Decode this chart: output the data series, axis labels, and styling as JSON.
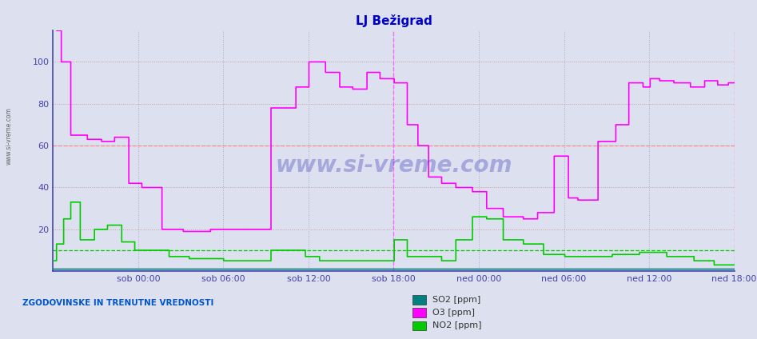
{
  "title": "LJ Bežigrad",
  "title_color": "#0000cc",
  "background_color": "#dde0ee",
  "plot_bg_color": "#dde0ee",
  "yticks": [
    20,
    40,
    60,
    80,
    100
  ],
  "ymin": 0,
  "ymax": 115,
  "xtick_labels": [
    "sob 00:00",
    "sob 06:00",
    "sob 12:00",
    "sob 18:00",
    "ned 00:00",
    "ned 06:00",
    "ned 12:00",
    "ned 18:00"
  ],
  "watermark": "www.si-vreme.com",
  "bottom_label": "ZGODOVINSKE IN TRENUTNE VREDNOSTI",
  "legend_entries": [
    "SO2 [ppm]",
    "O3 [ppm]",
    "NO2 [ppm]"
  ],
  "legend_colors": [
    "#008080",
    "#ff00ff",
    "#00cc00"
  ],
  "so2_color": "#008080",
  "o3_color": "#ff00ff",
  "no2_color": "#00cc00",
  "sidebar_text": "www.si-vreme.com",
  "n_points": 576
}
